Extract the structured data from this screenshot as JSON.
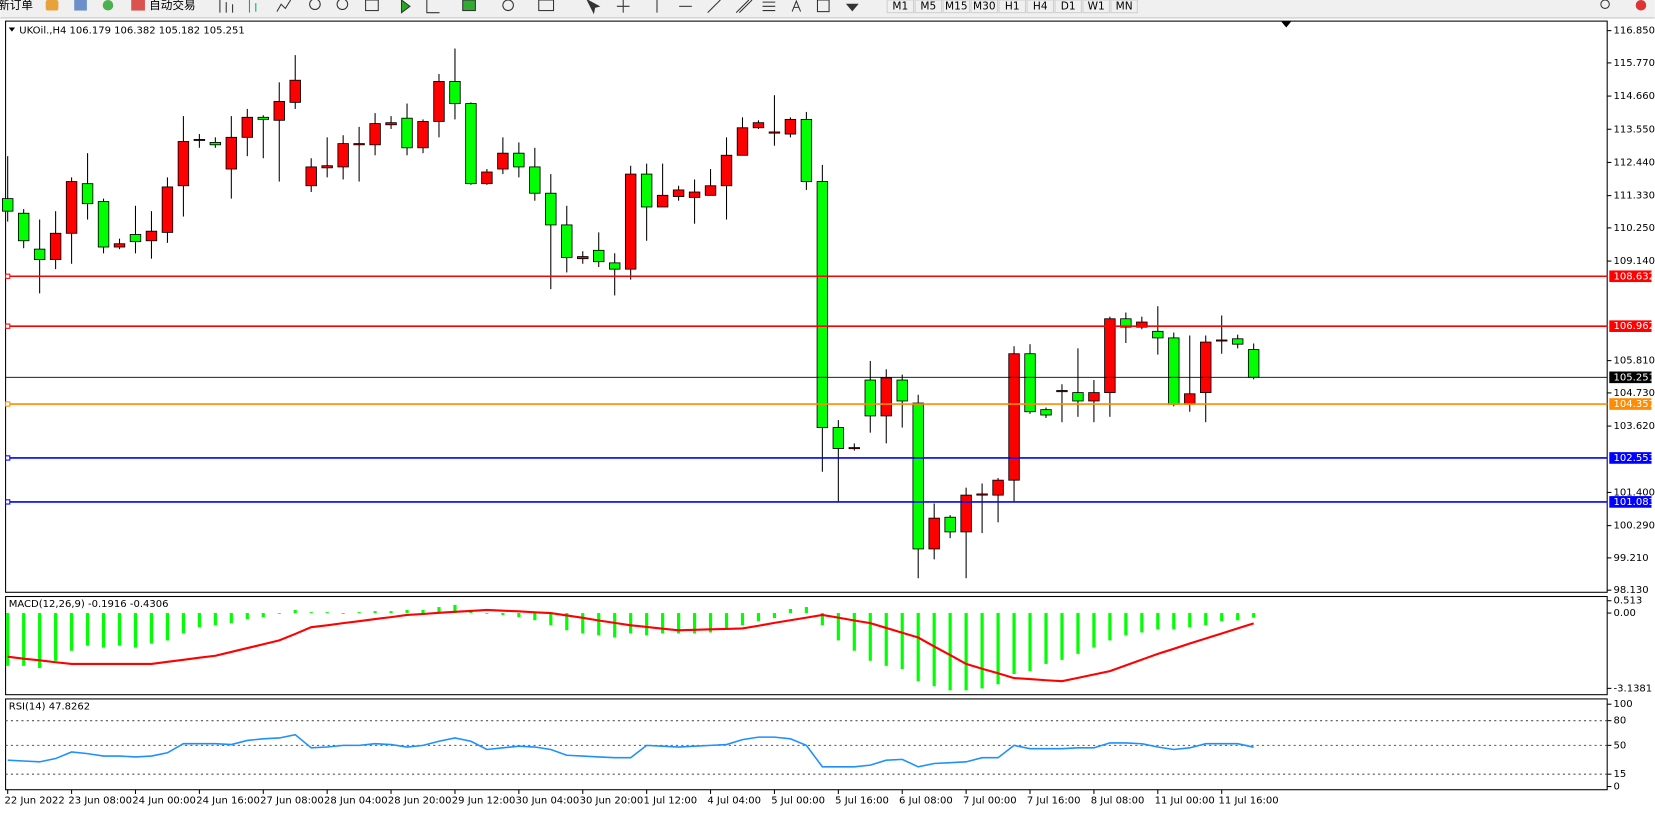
{
  "toolbar": {
    "new_order": "新订单",
    "auto_trading": "自动交易",
    "timeframes": [
      "M1",
      "M5",
      "M15",
      "M30",
      "H1",
      "H4",
      "D1",
      "W1",
      "MN"
    ]
  },
  "chart_data": [
    {
      "type": "candlestick",
      "title": "UKOil.,H4  106.179 106.382 105.182 105.251",
      "categories": [
        "22 Jun 2022",
        null,
        null,
        null,
        "23 Jun 08:00",
        null,
        null,
        null,
        "24 Jun 00:00",
        null,
        null,
        null,
        "24 Jun 16:00",
        null,
        null,
        null,
        "27 Jun 08:00",
        null,
        null,
        null,
        "28 Jun 04:00",
        null,
        null,
        null,
        "28 Jun 20:00",
        null,
        null,
        null,
        "29 Jun 12:00",
        null,
        null,
        null,
        "30 Jun 04:00",
        null,
        null,
        null,
        "30 Jun 20:00",
        null,
        null,
        null,
        "1 Jul 12:00",
        null,
        null,
        null,
        "4 Jul 04:00",
        null,
        null,
        null,
        "5 Jul 00:00",
        null,
        null,
        null,
        "5 Jul 16:00",
        null,
        null,
        null,
        "6 Jul 08:00",
        null,
        null,
        null,
        "7 Jul 00:00",
        null,
        null,
        null,
        "7 Jul 16:00",
        null,
        null,
        null,
        "8 Jul 08:00",
        null,
        null,
        null,
        "11 Jul 00:00",
        null,
        null,
        null,
        "11 Jul 16:00",
        null,
        null
      ],
      "open": [
        111.23,
        110.74,
        109.54,
        109.19,
        110.07,
        111.73,
        111.13,
        109.61,
        110.03,
        109.82,
        110.1,
        111.66,
        113.18,
        113.11,
        112.22,
        113.28,
        113.95,
        113.85,
        114.45,
        111.66,
        112.26,
        112.29,
        113.03,
        113.03,
        113.7,
        113.92,
        112.93,
        113.81,
        115.15,
        114.41,
        111.73,
        112.22,
        112.75,
        112.29,
        111.41,
        110.35,
        109.22,
        109.5,
        109.08,
        108.87,
        112.05,
        110.95,
        111.3,
        111.27,
        111.34,
        111.66,
        112.68,
        113.6,
        113.42,
        113.39,
        113.88,
        111.8,
        103.57,
        102.87,
        105.16,
        103.96,
        105.16,
        104.39,
        99.51,
        100.57,
        100.08,
        101.31,
        101.31,
        101.81,
        106.04,
        104.17,
        104.77,
        104.74,
        104.46,
        104.74,
        107.21,
        106.93,
        106.79,
        106.57,
        104.35,
        104.74,
        106.47,
        106.54,
        106.179
      ],
      "high": [
        112.65,
        110.88,
        110.53,
        110.81,
        111.94,
        112.75,
        111.23,
        109.89,
        110.99,
        110.81,
        111.94,
        113.99,
        113.39,
        113.28,
        113.99,
        114.23,
        114.02,
        115.12,
        116.03,
        112.58,
        113.28,
        113.35,
        113.63,
        114.09,
        113.99,
        114.41,
        113.88,
        115.4,
        116.25,
        114.45,
        112.22,
        113.28,
        113.11,
        112.93,
        112.05,
        110.99,
        109.47,
        110.1,
        109.4,
        112.33,
        112.4,
        112.4,
        111.66,
        111.87,
        112.22,
        113.28,
        113.95,
        113.85,
        114.69,
        113.95,
        114.13,
        112.36,
        103.82,
        103.04,
        105.8,
        105.52,
        105.34,
        104.67,
        101.03,
        100.64,
        101.56,
        101.7,
        101.88,
        106.29,
        106.36,
        104.24,
        105.02,
        106.22,
        105.16,
        107.28,
        107.42,
        107.28,
        107.63,
        106.75,
        106.65,
        106.65,
        107.32,
        106.68,
        106.382
      ],
      "low": [
        110.46,
        109.57,
        108.06,
        108.87,
        109.05,
        110.53,
        109.4,
        109.54,
        109.4,
        109.22,
        109.75,
        110.63,
        112.93,
        112.93,
        111.23,
        112.65,
        112.58,
        111.8,
        114.23,
        111.45,
        111.94,
        111.87,
        111.8,
        112.68,
        113.56,
        112.68,
        112.75,
        113.28,
        113.88,
        111.69,
        111.69,
        112.05,
        111.94,
        111.16,
        108.2,
        108.76,
        109.05,
        108.94,
        107.99,
        108.52,
        109.82,
        110.95,
        111.16,
        110.39,
        111.34,
        110.53,
        112.68,
        113.56,
        113.0,
        113.28,
        111.52,
        102.09,
        101.1,
        102.8,
        103.4,
        103.04,
        103.57,
        98.53,
        99.16,
        99.87,
        98.53,
        100.04,
        100.4,
        101.1,
        104.03,
        103.89,
        103.75,
        103.93,
        103.75,
        103.93,
        106.4,
        106.86,
        106.01,
        104.28,
        104.1,
        103.75,
        106.04,
        106.22,
        105.182
      ],
      "close": [
        110.81,
        109.82,
        109.19,
        110.07,
        111.8,
        111.06,
        109.61,
        109.72,
        109.79,
        110.14,
        111.62,
        113.14,
        113.21,
        113.03,
        113.28,
        113.95,
        113.88,
        114.48,
        115.19,
        112.29,
        112.33,
        113.07,
        113.07,
        113.74,
        113.77,
        112.93,
        113.81,
        115.15,
        114.41,
        111.73,
        112.12,
        112.75,
        112.29,
        111.41,
        110.35,
        109.26,
        109.29,
        109.12,
        108.87,
        112.05,
        110.95,
        111.34,
        111.52,
        111.45,
        111.66,
        112.68,
        113.6,
        113.77,
        113.46,
        113.88,
        111.8,
        103.57,
        102.87,
        102.9,
        103.96,
        105.23,
        104.46,
        99.51,
        100.54,
        100.08,
        101.31,
        101.35,
        101.81,
        106.04,
        104.1,
        103.99,
        104.81,
        104.46,
        104.74,
        107.21,
        106.93,
        107.1,
        106.57,
        104.35,
        104.7,
        106.43,
        106.5,
        106.36,
        105.251
      ],
      "up_color": "#ff0000",
      "down_color": "#00ff00",
      "ylim": [
        98.13,
        116.85
      ],
      "yticks": [
        {
          "value": 116.85,
          "label": "116.850"
        },
        {
          "value": 115.77,
          "label": "115.770"
        },
        {
          "value": 114.66,
          "label": "114.660"
        },
        {
          "value": 113.55,
          "label": "113.550"
        },
        {
          "value": 112.44,
          "label": "112.440"
        },
        {
          "value": 111.33,
          "label": "111.330"
        },
        {
          "value": 110.25,
          "label": "110.250"
        },
        {
          "value": 109.14,
          "label": "109.140"
        },
        {
          "value": 105.81,
          "label": "105.810"
        },
        {
          "value": 104.73,
          "label": "104.730"
        },
        {
          "value": 103.62,
          "label": "103.620"
        },
        {
          "value": 101.4,
          "label": "101.400"
        },
        {
          "value": 100.29,
          "label": "100.290"
        },
        {
          "value": 99.21,
          "label": "99.210"
        },
        {
          "value": 98.13,
          "label": "98.130"
        }
      ],
      "levels": [
        {
          "value": 108.632,
          "color": "#ff0000"
        },
        {
          "value": 106.962,
          "color": "#ff0000"
        },
        {
          "value": 104.357,
          "color": "#ff8c00"
        },
        {
          "value": 102.553,
          "color": "#0000ff"
        },
        {
          "value": 101.083,
          "color": "#0000ff"
        }
      ],
      "bid": 105.251
    },
    {
      "type": "macd",
      "title": "MACD(12,26,9) -0.1916 -0.4306",
      "histogram": {
        "color": "#00ff00",
        "values": [
          -2.2,
          -2.2,
          -2.29,
          -1.99,
          -1.57,
          -1.36,
          -1.44,
          -1.36,
          -1.44,
          -1.27,
          -1.14,
          -0.85,
          -0.59,
          -0.51,
          -0.42,
          -0.25,
          -0.17,
          0,
          0.13,
          0.04,
          0.04,
          0,
          0.04,
          0.08,
          0.08,
          0.13,
          0.13,
          0.25,
          0.34,
          0.13,
          0,
          -0.08,
          -0.17,
          -0.3,
          -0.51,
          -0.72,
          -0.85,
          -0.93,
          -1.02,
          -0.85,
          -0.93,
          -0.85,
          -0.85,
          -0.85,
          -0.81,
          -0.68,
          -0.51,
          -0.34,
          -0.21,
          0.17,
          0.25,
          -0.51,
          -1.14,
          -1.57,
          -1.99,
          -2.2,
          -2.33,
          -2.84,
          -3.05,
          -3.22,
          -3.22,
          -3.14,
          -2.97,
          -2.54,
          -2.42,
          -2.12,
          -1.95,
          -1.7,
          -1.44,
          -1.14,
          -0.93,
          -0.81,
          -0.68,
          -0.68,
          -0.59,
          -0.51,
          -0.34,
          -0.3,
          -0.1916
        ]
      },
      "signal": {
        "color": "#ff0000",
        "values": [
          -1.82,
          -1.9,
          -1.97,
          -2.05,
          -2.12,
          -2.12,
          -2.12,
          -2.12,
          -2.12,
          -2.12,
          -2.03,
          -1.95,
          -1.86,
          -1.78,
          -1.62,
          -1.46,
          -1.3,
          -1.14,
          -0.87,
          -0.59,
          -0.51,
          -0.42,
          -0.34,
          -0.25,
          -0.17,
          -0.08,
          -0.04,
          0.01,
          0.05,
          0.09,
          0.13,
          0.1,
          0.07,
          0.03,
          0,
          -0.1,
          -0.2,
          -0.31,
          -0.41,
          -0.51,
          -0.58,
          -0.65,
          -0.72,
          -0.7,
          -0.68,
          -0.66,
          -0.64,
          -0.53,
          -0.41,
          -0.3,
          -0.19,
          -0.08,
          -0.19,
          -0.31,
          -0.42,
          -0.62,
          -0.82,
          -1.02,
          -1.39,
          -1.75,
          -2.12,
          -2.32,
          -2.51,
          -2.71,
          -2.75,
          -2.8,
          -2.84,
          -2.7,
          -2.56,
          -2.42,
          -2.18,
          -1.94,
          -1.7,
          -1.49,
          -1.27,
          -1.06,
          -0.85,
          -0.64,
          -0.4306
        ]
      },
      "ylim": [
        -3.1381,
        0.513
      ],
      "yticks": [
        0.513,
        {
          "value": 0,
          "label": "0.00"
        },
        -3.1381
      ]
    },
    {
      "type": "line",
      "title": "RSI(14) 47.8262",
      "color": "#1e90ff",
      "values": [
        32,
        31,
        30,
        34,
        42,
        40,
        37,
        37,
        36,
        37,
        41,
        52,
        52,
        52,
        51,
        56,
        58,
        59,
        63,
        47,
        48,
        50,
        50,
        52,
        51,
        48,
        50,
        55,
        59,
        55,
        45,
        47,
        49,
        48,
        45,
        38,
        37,
        36,
        35,
        35,
        50,
        49,
        48,
        49,
        50,
        51,
        57,
        60,
        60,
        58,
        50,
        24,
        24,
        24,
        26,
        32,
        33,
        24,
        28,
        29,
        30,
        35,
        35,
        50,
        46,
        46,
        46,
        47,
        47,
        53,
        53,
        52,
        48,
        45,
        47,
        52,
        52,
        52,
        47.8262
      ],
      "ylim": [
        0,
        100
      ],
      "yticks": [
        100,
        80,
        50,
        15,
        0
      ],
      "grid": "dotted"
    }
  ]
}
